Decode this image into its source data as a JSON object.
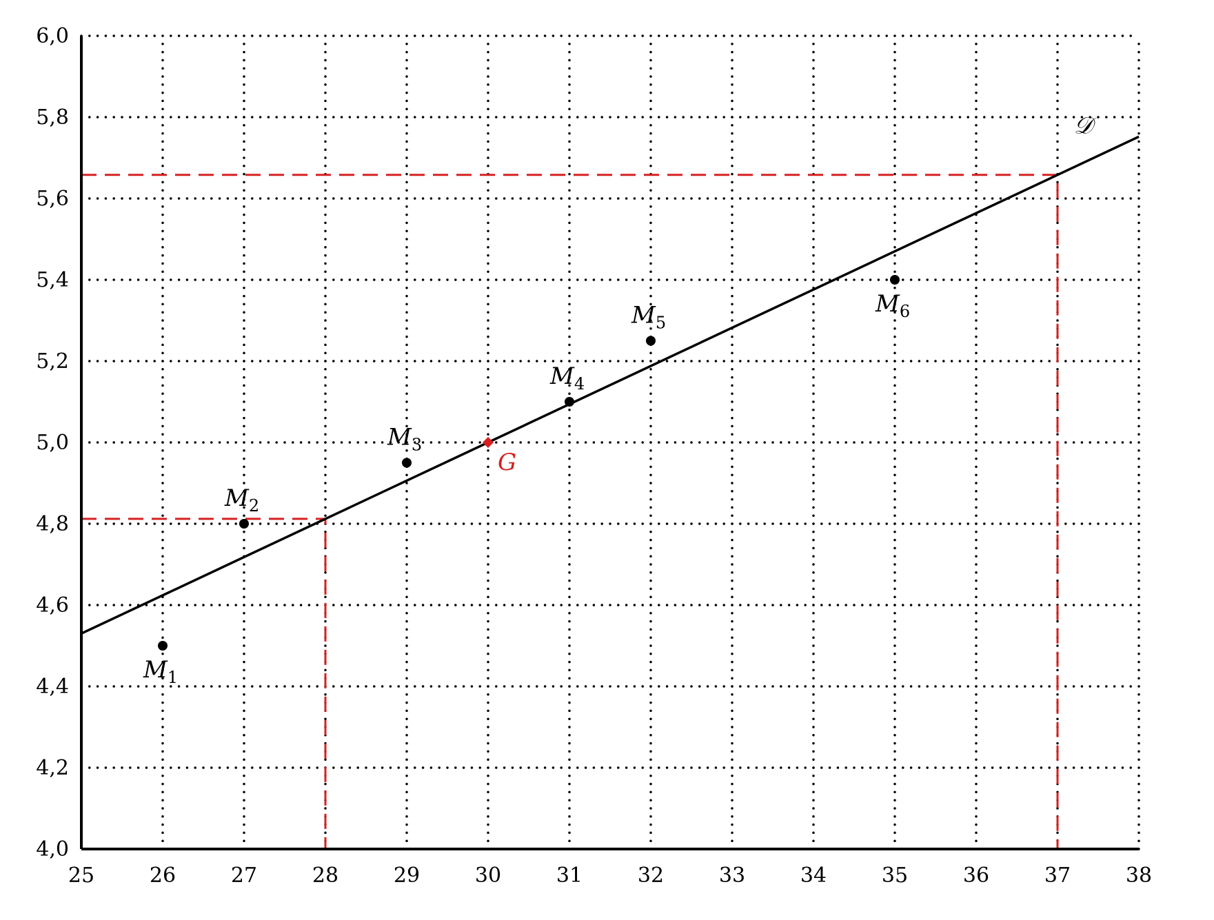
{
  "chart_data": {
    "type": "scatter",
    "title": "",
    "xlabel": "",
    "ylabel": "",
    "xlim": [
      25,
      38
    ],
    "ylim": [
      4.0,
      6.0
    ],
    "grid": true,
    "x_ticks": [
      "25",
      "26",
      "27",
      "28",
      "29",
      "30",
      "31",
      "32",
      "33",
      "34",
      "35",
      "36",
      "37",
      "38"
    ],
    "y_ticks": [
      "4,0",
      "4,2",
      "4,4",
      "4,6",
      "4,8",
      "5,0",
      "5,2",
      "5,4",
      "5,6",
      "5,8",
      "6,0"
    ],
    "points": [
      {
        "label": "M",
        "sub": "1",
        "x": 26,
        "y": 4.5,
        "label_pos": "below"
      },
      {
        "label": "M",
        "sub": "2",
        "x": 27,
        "y": 4.8,
        "label_pos": "above"
      },
      {
        "label": "M",
        "sub": "3",
        "x": 29,
        "y": 4.95,
        "label_pos": "above"
      },
      {
        "label": "M",
        "sub": "4",
        "x": 31,
        "y": 5.1,
        "label_pos": "above"
      },
      {
        "label": "M",
        "sub": "5",
        "x": 32,
        "y": 5.25,
        "label_pos": "above"
      },
      {
        "label": "M",
        "sub": "6",
        "x": 35,
        "y": 5.4,
        "label_pos": "below"
      }
    ],
    "mean_point": {
      "label": "G",
      "x": 30,
      "y": 5.0,
      "color": "#d62020"
    },
    "regression_line": {
      "label": "𝒟",
      "slope": 0.094,
      "intercept": 2.18
    },
    "projections": [
      {
        "x": 28,
        "y": 4.812,
        "color": "#d62020"
      },
      {
        "x": 37,
        "y": 5.658,
        "color": "#d62020"
      }
    ]
  }
}
